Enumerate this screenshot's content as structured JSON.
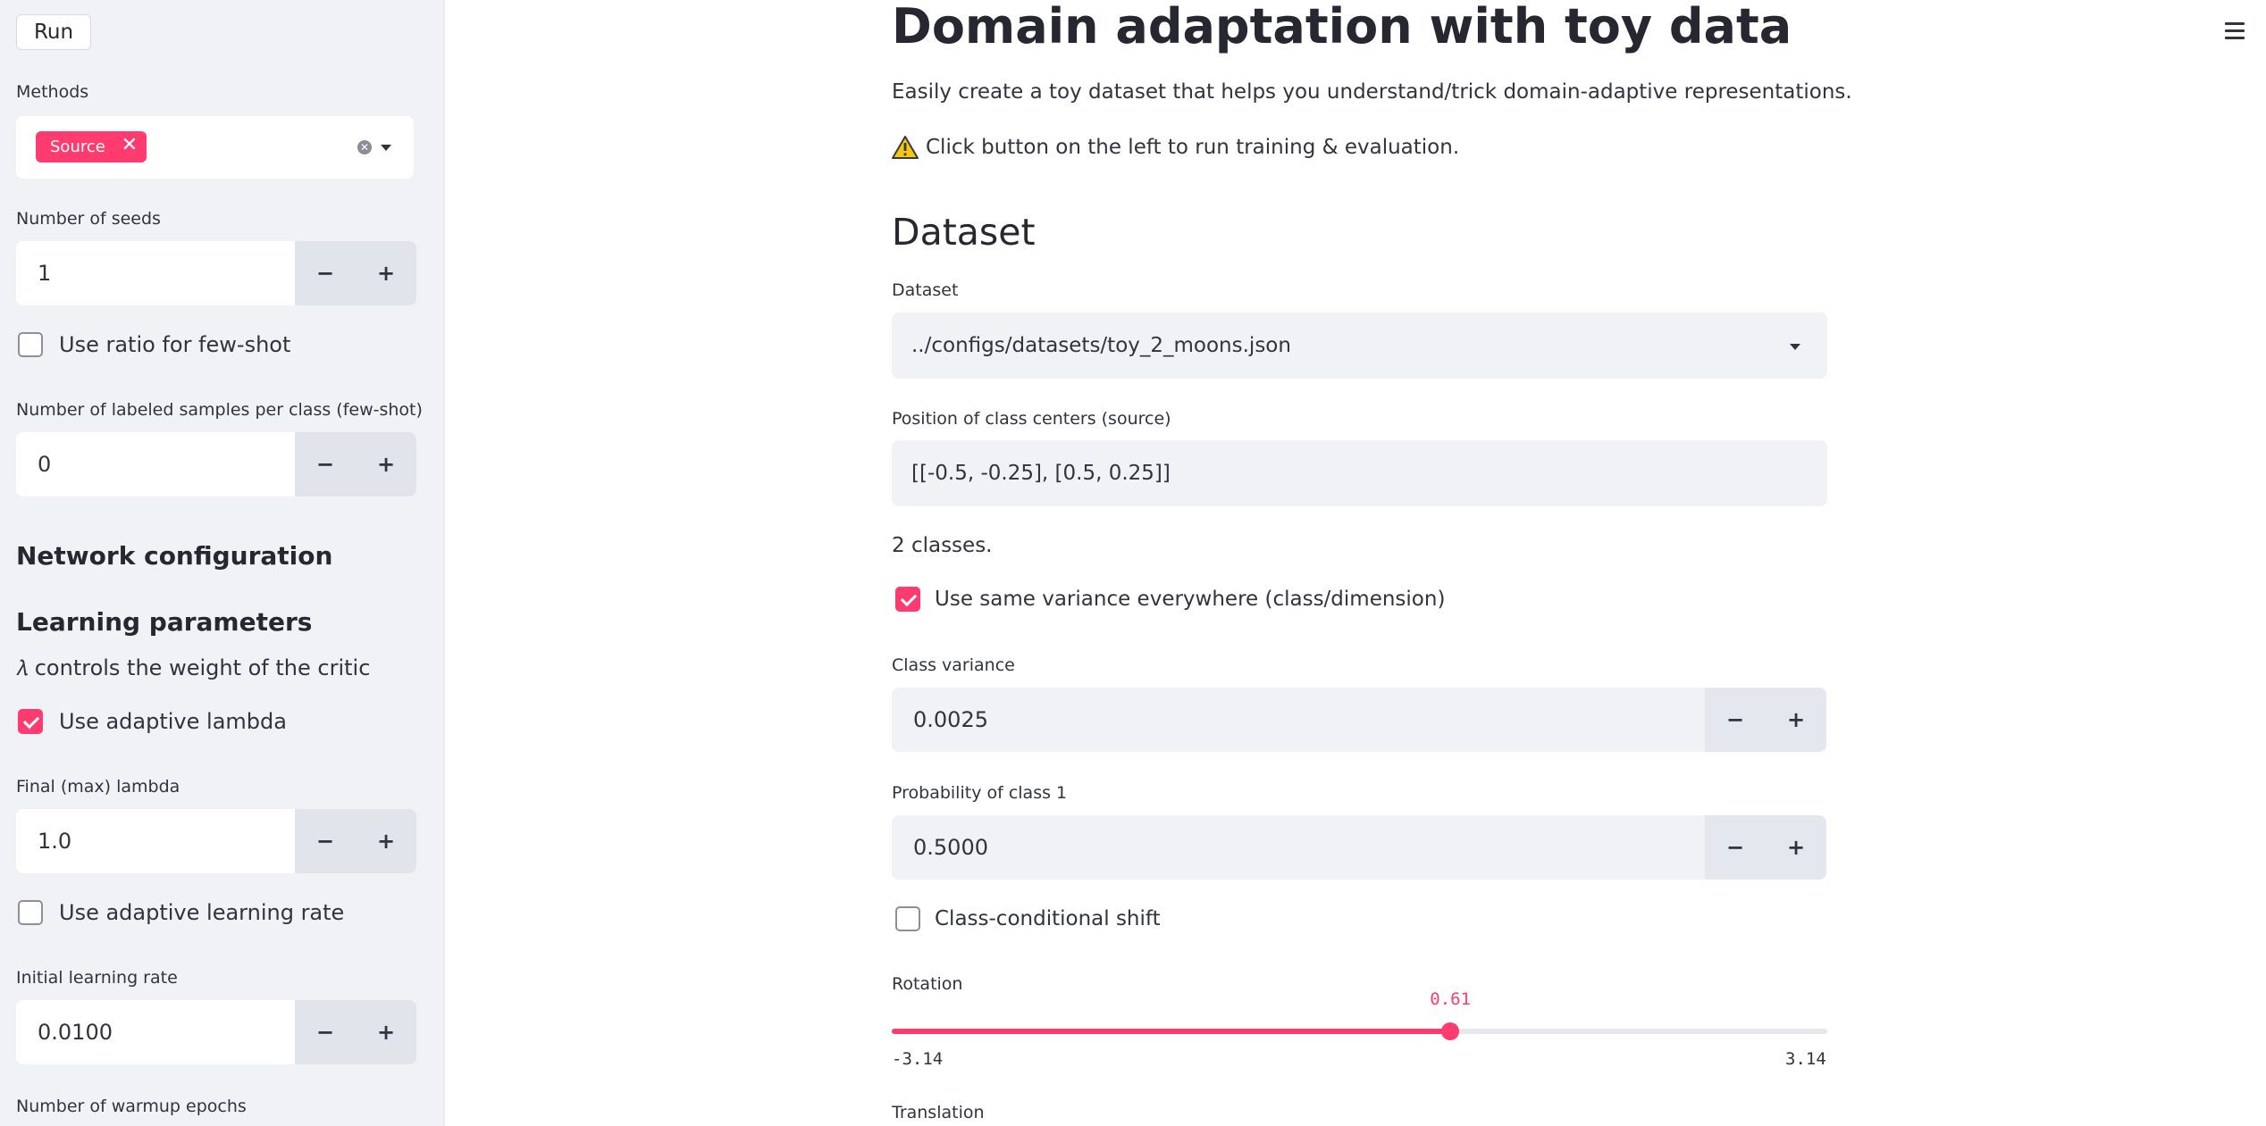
{
  "sidebar": {
    "run_label": "Run",
    "methods": {
      "label": "Methods",
      "selected": [
        "Source"
      ]
    },
    "num_seeds": {
      "label": "Number of seeds",
      "value": "1"
    },
    "use_ratio": {
      "label": "Use ratio for few-shot",
      "checked": false
    },
    "labeled_samples": {
      "label": "Number of labeled samples per class (few-shot)",
      "value": "0"
    },
    "network_heading": "Network configuration",
    "learning_heading": "Learning parameters",
    "lambda_note": "𝜆 controls the weight of the critic",
    "adaptive_lambda": {
      "label": "Use adaptive lambda",
      "checked": true
    },
    "final_lambda": {
      "label": "Final (max) lambda",
      "value": "1.0"
    },
    "adaptive_lr": {
      "label": "Use adaptive learning rate",
      "checked": false
    },
    "initial_lr": {
      "label": "Initial learning rate",
      "value": "0.0100"
    },
    "warmup_label": "Number of warmup epochs",
    "stepper_minus": "−",
    "stepper_plus": "+"
  },
  "main": {
    "title": "Domain adaptation with toy data",
    "intro": "Easily create a toy dataset that helps you understand/trick domain-adaptive representations.",
    "warning": "Click button on the left to run training & evaluation.",
    "dataset_heading": "Dataset",
    "dataset_select": {
      "label": "Dataset",
      "value": "../configs/datasets/toy_2_moons.json"
    },
    "class_centers": {
      "label": "Position of class centers (source)",
      "value": "[[-0.5, -0.25], [0.5, 0.25]]"
    },
    "classes_count": "2 classes.",
    "same_variance": {
      "label": "Use same variance everywhere (class/dimension)",
      "checked": true
    },
    "class_variance": {
      "label": "Class variance",
      "value": "0.0025"
    },
    "prob_class1": {
      "label": "Probability of class 1",
      "value": "0.5000"
    },
    "class_shift": {
      "label": "Class-conditional shift",
      "checked": false
    },
    "rotation": {
      "label": "Rotation",
      "value": 0.61,
      "value_label": "0.61",
      "min": -3.14,
      "max": 3.14,
      "min_label": "-3.14",
      "max_label": "3.14"
    },
    "translation_label": "Translation"
  },
  "colors": {
    "accent": "#ff3b6f",
    "sidebar_bg": "#f0f2f6"
  },
  "icons": [
    "close-icon",
    "clear-icon",
    "chevron-down-icon",
    "warning-icon",
    "hamburger-menu-icon",
    "checkmark-icon"
  ]
}
